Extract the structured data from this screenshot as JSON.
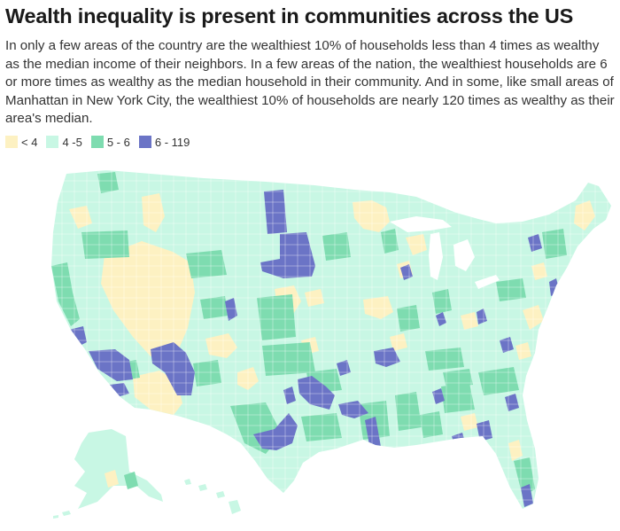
{
  "title": "Wealth inequality is present in communities across the US",
  "subtitle": "In only a few areas of the country are the wealthiest 10% of households less than 4 times as wealthy as the median income of their neighbors. In a few areas of the nation, the wealthiest households are 6 or more times as wealthy as the median household in their community. And in some, like small areas of Manhattan in New York City, the wealthiest 10% of households are nearly 120 times as wealthy as their area's median.",
  "legend": [
    {
      "label": "< 4",
      "color": "#fdf1c2"
    },
    {
      "label": "4 -5",
      "color": "#c8f7e4"
    },
    {
      "label": "5 - 6",
      "color": "#7edcb0"
    },
    {
      "label": "6 - 119",
      "color": "#6b74c6"
    }
  ],
  "colors": {
    "lt4": "#fdf1c2",
    "c45": "#c8f7e4",
    "c56": "#7edcb0",
    "c6plus": "#6b74c6",
    "border": "#ffffff"
  }
}
